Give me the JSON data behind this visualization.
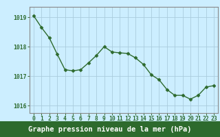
{
  "x": [
    0,
    1,
    2,
    3,
    4,
    5,
    6,
    7,
    8,
    9,
    10,
    11,
    12,
    13,
    14,
    15,
    16,
    17,
    18,
    19,
    20,
    21,
    22,
    23
  ],
  "y": [
    1019.05,
    1018.65,
    1018.3,
    1017.75,
    1017.22,
    1017.18,
    1017.22,
    1017.45,
    1017.7,
    1018.0,
    1017.82,
    1017.79,
    1017.77,
    1017.62,
    1017.4,
    1017.05,
    1016.88,
    1016.55,
    1016.35,
    1016.35,
    1016.22,
    1016.35,
    1016.63,
    1016.68
  ],
  "line_color": "#2d6a2d",
  "marker": "D",
  "marker_size": 2.5,
  "background_color": "#cceeff",
  "grid_color": "#aaccdd",
  "bottom_bar_color": "#2d6a2d",
  "xlabel": "Graphe pression niveau de la mer (hPa)",
  "xlabel_fontsize": 7.5,
  "tick_color": "#2d6a2d",
  "axis_color": "#888888",
  "ylim": [
    1015.75,
    1019.35
  ],
  "yticks": [
    1016,
    1017,
    1018,
    1019
  ],
  "xtick_labels": [
    "0",
    "1",
    "2",
    "3",
    "4",
    "5",
    "6",
    "7",
    "8",
    "9",
    "10",
    "11",
    "12",
    "13",
    "14",
    "15",
    "16",
    "17",
    "18",
    "19",
    "20",
    "21",
    "22",
    "23"
  ],
  "tick_fontsize": 5.8,
  "linewidth": 1.0,
  "fig_width": 3.2,
  "fig_height": 2.0,
  "dpi": 100
}
